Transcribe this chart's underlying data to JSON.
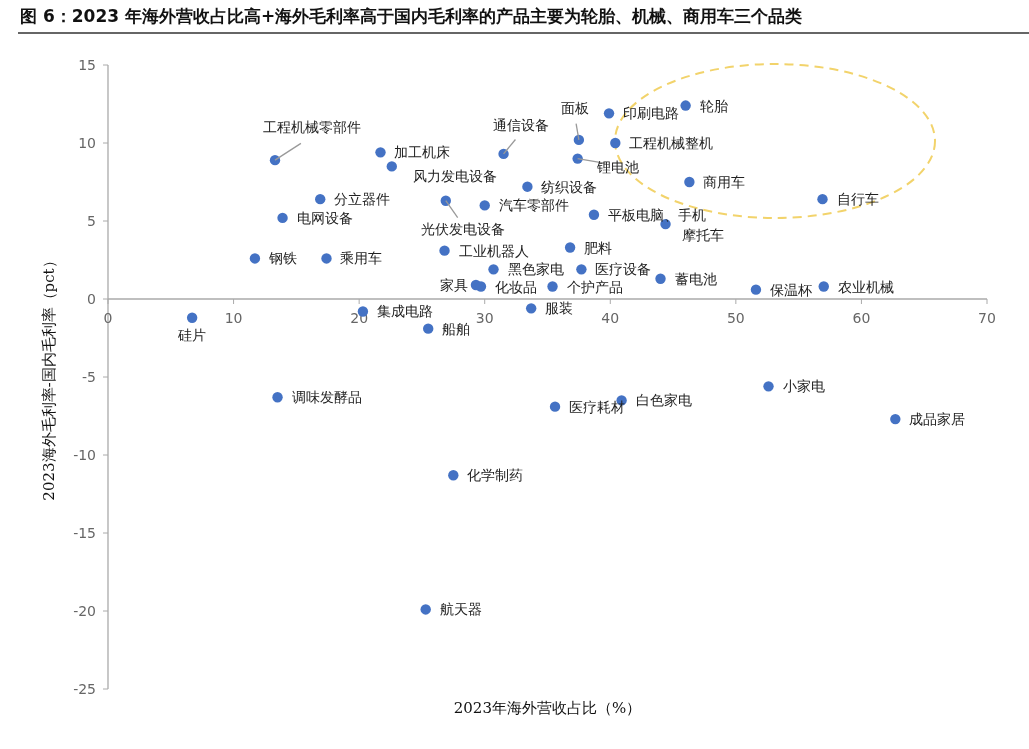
{
  "chart_data": {
    "type": "scatter",
    "title": "图 6：2023 年海外营收占比高+海外毛利率高于国内毛利率的产品主要为轮胎、机械、商用车三个品类",
    "xlabel": "2023年海外营收占比（%）",
    "ylabel": "2023海外毛利率-国内毛利率（pct）",
    "xlim": [
      0,
      70
    ],
    "xticks": [
      0,
      10,
      20,
      30,
      40,
      50,
      60,
      70
    ],
    "ylim": [
      -25,
      15
    ],
    "yticks": [
      -25,
      -20,
      -15,
      -10,
      -5,
      0,
      5,
      10,
      15
    ],
    "grid": false,
    "marker": "circle",
    "series": [
      {
        "color": "#4472c4",
        "x": [
          6.7,
          13.3,
          21.7,
          22.6,
          26.9,
          31.5,
          33.4,
          30.0,
          16.9,
          13.9,
          11.7,
          17.4,
          26.8,
          30.7,
          29.3,
          29.7,
          35.4,
          33.7,
          20.3,
          25.5,
          37.5,
          39.9,
          46.0,
          40.4,
          37.4,
          46.3,
          56.9,
          38.7,
          44.4,
          36.8,
          37.7,
          44.0,
          51.6,
          57.0,
          13.5,
          27.5,
          25.3,
          35.6,
          40.9,
          52.6,
          62.7
        ],
        "values": [
          -1.2,
          8.9,
          9.4,
          8.5,
          6.3,
          9.3,
          7.2,
          6.0,
          6.4,
          5.2,
          2.6,
          2.6,
          3.1,
          1.9,
          0.9,
          0.8,
          0.8,
          -0.6,
          -0.8,
          -1.9,
          10.2,
          11.9,
          12.4,
          10.0,
          9.0,
          7.5,
          6.4,
          5.4,
          4.8,
          3.3,
          1.9,
          1.3,
          0.6,
          0.8,
          -6.3,
          -11.3,
          -19.9,
          -6.9,
          -6.5,
          -5.6,
          -7.7
        ]
      }
    ],
    "annotations": [
      {
        "text": "硅片",
        "x": 6.7,
        "y": -1.2
      },
      {
        "text": "工程机械零部件",
        "x": 13.3,
        "y": 8.9
      },
      {
        "text": "加工机床",
        "x": 21.7,
        "y": 9.4
      },
      {
        "text": "风力发电设备",
        "x": 22.6,
        "y": 8.5
      },
      {
        "text": "光伏发电设备",
        "x": 26.9,
        "y": 6.3
      },
      {
        "text": "通信设备",
        "x": 31.5,
        "y": 9.3
      },
      {
        "text": "纺织设备",
        "x": 33.4,
        "y": 7.2
      },
      {
        "text": "汽车零部件",
        "x": 30.0,
        "y": 6.0
      },
      {
        "text": "分立器件",
        "x": 16.9,
        "y": 6.4
      },
      {
        "text": "电网设备",
        "x": 13.9,
        "y": 5.2
      },
      {
        "text": "钢铁",
        "x": 11.7,
        "y": 2.6
      },
      {
        "text": "乘用车",
        "x": 17.4,
        "y": 2.6
      },
      {
        "text": "工业机器人",
        "x": 26.8,
        "y": 3.1
      },
      {
        "text": "黑色家电",
        "x": 30.7,
        "y": 1.9
      },
      {
        "text": "家具",
        "x": 29.3,
        "y": 0.9
      },
      {
        "text": "化妆品",
        "x": 29.7,
        "y": 0.8
      },
      {
        "text": "个护产品",
        "x": 35.4,
        "y": 0.8
      },
      {
        "text": "服装",
        "x": 33.7,
        "y": -0.6
      },
      {
        "text": "集成电路",
        "x": 20.3,
        "y": -0.8
      },
      {
        "text": "船舶",
        "x": 25.5,
        "y": -1.9
      },
      {
        "text": "面板",
        "x": 37.5,
        "y": 10.2
      },
      {
        "text": "印刷电路",
        "x": 39.9,
        "y": 11.9
      },
      {
        "text": "轮胎",
        "x": 46.0,
        "y": 12.4
      },
      {
        "text": "工程机械整机",
        "x": 40.4,
        "y": 10.0
      },
      {
        "text": "锂电池",
        "x": 37.4,
        "y": 9.0
      },
      {
        "text": "商用车",
        "x": 46.3,
        "y": 7.5
      },
      {
        "text": "自行车",
        "x": 56.9,
        "y": 6.4
      },
      {
        "text": "平板电脑、手机",
        "x": 38.7,
        "y": 5.4
      },
      {
        "text": "摩托车",
        "x": 44.4,
        "y": 4.8
      },
      {
        "text": "肥料",
        "x": 36.8,
        "y": 3.3
      },
      {
        "text": "医疗设备",
        "x": 37.7,
        "y": 1.9
      },
      {
        "text": "蓄电池",
        "x": 44.0,
        "y": 1.3
      },
      {
        "text": "保温杯",
        "x": 51.6,
        "y": 0.6
      },
      {
        "text": "农业机械",
        "x": 57.0,
        "y": 0.8
      },
      {
        "text": "调味发酵品",
        "x": 13.5,
        "y": -6.3
      },
      {
        "text": "化学制药",
        "x": 27.5,
        "y": -11.3
      },
      {
        "text": "航天器",
        "x": 25.3,
        "y": -19.9
      },
      {
        "text": "医疗耗材",
        "x": 35.6,
        "y": -6.9
      },
      {
        "text": "白色家电",
        "x": 40.9,
        "y": -6.5
      },
      {
        "text": "小家电",
        "x": 52.6,
        "y": -5.6
      },
      {
        "text": "成品家居",
        "x": 62.7,
        "y": -7.7
      }
    ]
  }
}
